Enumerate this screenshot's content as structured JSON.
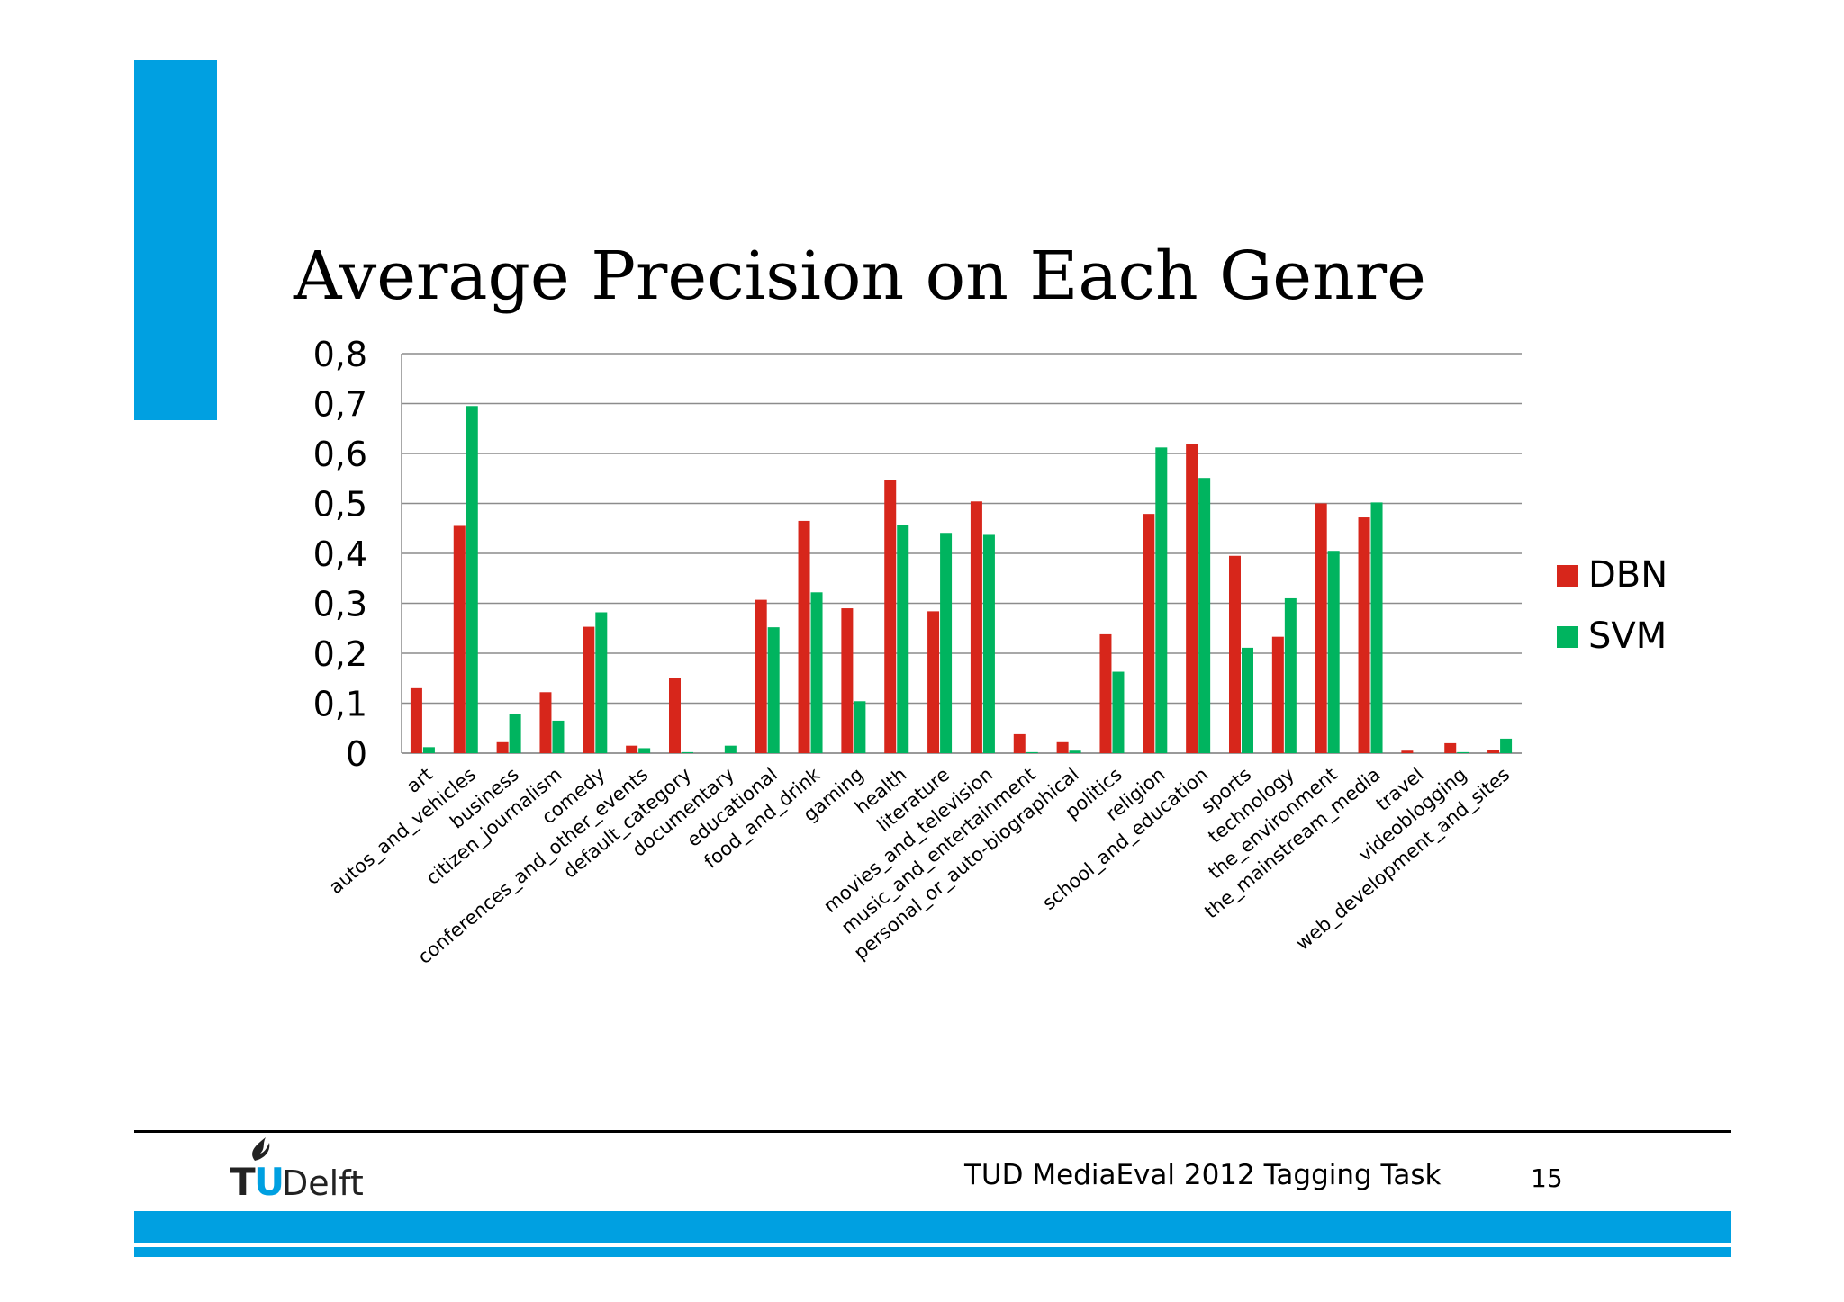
{
  "slide": {
    "title": "Average Precision on Each Genre",
    "footer_text": "TUD MediaEval 2012 Tagging Task",
    "page_number": "15",
    "logo": {
      "text_t": "T",
      "text_u": "U",
      "text_rest": "Delft",
      "icon": "flame-icon"
    },
    "colors": {
      "accent": "#00a0e1",
      "dbn": "#d7261b",
      "svm": "#00b45f"
    }
  },
  "chart_data": {
    "type": "bar",
    "title": "Average Precision on Each Genre",
    "xlabel": "",
    "ylabel": "",
    "ylim": [
      0,
      0.8
    ],
    "y_ticks": [
      "0",
      "0,1",
      "0,2",
      "0,3",
      "0,4",
      "0,5",
      "0,6",
      "0,7",
      "0,8"
    ],
    "grid": true,
    "legend_position": "right",
    "categories": [
      "art",
      "autos_and_vehicles",
      "business",
      "citizen_journalism",
      "comedy",
      "conferences_and_other_events",
      "default_category",
      "documentary",
      "educational",
      "food_and_drink",
      "gaming",
      "health",
      "literature",
      "movies_and_television",
      "music_and_entertainment",
      "personal_or_auto-biographical",
      "politics",
      "religion",
      "school_and_education",
      "sports",
      "technology",
      "the_environment",
      "the_mainstream_media",
      "travel",
      "videoblogging",
      "web_development_and_sites"
    ],
    "series": [
      {
        "name": "DBN",
        "color": "#d7261b",
        "values": [
          0.13,
          0.455,
          0.022,
          0.122,
          0.253,
          0.015,
          0.15,
          0.0,
          0.307,
          0.465,
          0.29,
          0.546,
          0.284,
          0.504,
          0.038,
          0.022,
          0.238,
          0.479,
          0.619,
          0.395,
          0.233,
          0.5,
          0.472,
          0.005,
          0.02,
          0.006
        ]
      },
      {
        "name": "SVM",
        "color": "#00b45f",
        "values": [
          0.012,
          0.695,
          0.078,
          0.065,
          0.282,
          0.01,
          0.002,
          0.015,
          0.252,
          0.322,
          0.104,
          0.456,
          0.441,
          0.437,
          0.002,
          0.005,
          0.163,
          0.612,
          0.551,
          0.211,
          0.31,
          0.405,
          0.502,
          0.0,
          0.002,
          0.029
        ]
      }
    ]
  }
}
